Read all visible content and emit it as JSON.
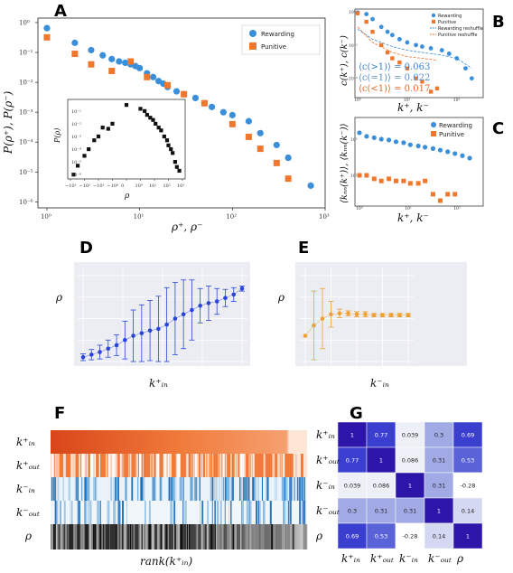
{
  "colors": {
    "rewarding": "#3b8fd8",
    "punitive": "#f0772e",
    "black": "#111111",
    "blue_d": "#2a45d6",
    "orange_e": "#f0a030"
  },
  "panels": {
    "a": "A",
    "b": "B",
    "c": "C",
    "d": "D",
    "e": "E",
    "f": "F",
    "g": "G"
  },
  "legend": {
    "rewarding": "Rewarding",
    "punitive": "Punitive",
    "rewarding_reshuffle": "Rewarding reshuffle",
    "punitive_reshuffle": "Punitive reshuffle"
  },
  "labels": {
    "a_x": "ρ⁺, ρ⁻",
    "a_y": "P(ρ⁺), P(ρ⁻)",
    "a_inset_x": "ρ",
    "a_inset_y": "P(ρ)",
    "b_x": "k⁺, k⁻",
    "b_y": "c(k⁺), c(k⁻)",
    "c_x": "k⁺, k⁻",
    "c_y": "⟨kₙₙ(k⁺)⟩, ⟨kₙₙ(k⁻)⟩",
    "d_x": "k⁺ᵢₙ",
    "d_y": "ρ",
    "e_x": "k⁻ᵢₙ",
    "e_y": "ρ",
    "f_x": "rank(k⁺ᵢₙ)"
  },
  "b_annotations": [
    "⟨c(>1)⟩ = 0.063",
    "⟨c(=1)⟩ = 0.022",
    "⟨c(<1)⟩ = 0.017"
  ],
  "a_xticks": [
    "10⁰",
    "10¹",
    "10²",
    "10³"
  ],
  "a_yticks": [
    "10⁰",
    "10⁻¹",
    "10⁻²",
    "10⁻³",
    "10⁻⁴",
    "10⁻⁵",
    "10⁻⁶"
  ],
  "a_inset_xticks": [
    "−10³",
    "−10²",
    "−10¹",
    "−10⁰",
    "0",
    "10⁰",
    "10¹",
    "10²",
    "10³"
  ],
  "a_inset_yticks": [
    "10⁻¹",
    "10⁻²",
    "10⁻³",
    "10⁻⁴",
    "10⁻⁵",
    "10⁻⁶"
  ],
  "b_xticks": [
    "10⁰",
    "10¹",
    "10²"
  ],
  "b_yticks": [
    "10⁰",
    "10⁻¹",
    "10⁻²"
  ],
  "c_xticks": [
    "10⁰",
    "10¹",
    "10²"
  ],
  "c_yticks": [
    "10²",
    "10¹"
  ],
  "f_rows": [
    "k⁺ᵢₙ",
    "k⁺ₒᵤₜ",
    "k⁻ᵢₙ",
    "k⁻ₒᵤₜ",
    "ρ"
  ],
  "chart_data": [
    {
      "id": "A",
      "type": "scatter",
      "xscale": "log",
      "yscale": "log",
      "xlim": [
        0.8,
        1000
      ],
      "ylim": [
        1e-06,
        1
      ],
      "series": [
        {
          "name": "Rewarding",
          "x": [
            1,
            2,
            3,
            4,
            5,
            6,
            7,
            8,
            9,
            10,
            12,
            14,
            16,
            18,
            20,
            25,
            30,
            40,
            50,
            60,
            80,
            100,
            150,
            200,
            300,
            400,
            700
          ],
          "y": [
            0.65,
            0.21,
            0.12,
            0.08,
            0.06,
            0.05,
            0.045,
            0.04,
            0.035,
            0.03,
            0.02,
            0.015,
            0.011,
            0.009,
            0.007,
            0.005,
            0.004,
            0.003,
            0.002,
            0.0015,
            0.001,
            0.0008,
            0.0005,
            0.0002,
            8e-05,
            3e-05,
            3.5e-06
          ]
        },
        {
          "name": "Punitive",
          "x": [
            1,
            2,
            3,
            5,
            8,
            12,
            20,
            30,
            50,
            100,
            150,
            200,
            300,
            400
          ],
          "y": [
            0.32,
            0.09,
            0.04,
            0.024,
            0.05,
            0.015,
            0.008,
            0.004,
            0.002,
            0.0004,
            0.00015,
            6e-05,
            2e-05,
            6e-06
          ]
        }
      ]
    },
    {
      "id": "A_inset",
      "type": "scatter",
      "series": [
        {
          "name": "",
          "x": [
            -600,
            -300,
            -100,
            -50,
            -20,
            -10,
            -5,
            -2,
            -1,
            0,
            1,
            2,
            3,
            5,
            8,
            12,
            20,
            30,
            50,
            80,
            100,
            150,
            200,
            300,
            400,
            600
          ],
          "y": [
            1e-06,
            5e-06,
            3e-05,
            0.0001,
            0.0005,
            0.001,
            0.005,
            0.004,
            0.01,
            0.3,
            0.15,
            0.1,
            0.05,
            0.03,
            0.02,
            0.01,
            0.005,
            0.003,
            0.001,
            0.0005,
            0.0002,
            0.0001,
            5e-05,
            1e-05,
            4e-06,
            2e-06
          ]
        }
      ]
    },
    {
      "id": "B",
      "type": "scatter",
      "xscale": "log",
      "yscale": "log",
      "xlim": [
        1,
        300
      ],
      "ylim": [
        0.003,
        1
      ],
      "series": [
        {
          "name": "Rewarding",
          "x": [
            1,
            1.5,
            2,
            3,
            4,
            5,
            7,
            10,
            15,
            20,
            30,
            50,
            70,
            100,
            150,
            200
          ],
          "y": [
            0.95,
            0.85,
            0.6,
            0.35,
            0.25,
            0.2,
            0.15,
            0.12,
            0.1,
            0.09,
            0.08,
            0.07,
            0.055,
            0.04,
            0.02,
            0.01
          ]
        },
        {
          "name": "Punitive",
          "x": [
            1,
            1.5,
            2,
            3,
            4,
            5,
            7,
            10,
            15,
            20,
            30,
            40
          ],
          "y": [
            0.9,
            0.5,
            0.25,
            0.1,
            0.06,
            0.04,
            0.03,
            0.02,
            0.01,
            0.008,
            0.004,
            0.005
          ]
        },
        {
          "name": "Rewarding reshuffle",
          "x": [
            1,
            2,
            5,
            10,
            20,
            50,
            100,
            200
          ],
          "y": [
            0.3,
            0.15,
            0.09,
            0.07,
            0.06,
            0.05,
            0.04,
            0.02
          ]
        },
        {
          "name": "Punitive reshuffle",
          "x": [
            1,
            2,
            5,
            10,
            20,
            40
          ],
          "y": [
            0.35,
            0.12,
            0.06,
            0.045,
            0.04,
            0.035
          ]
        }
      ]
    },
    {
      "id": "C",
      "type": "scatter",
      "xscale": "log",
      "yscale": "log",
      "series": [
        {
          "name": "Rewarding",
          "x": [
            1,
            1.4,
            2,
            2.8,
            4,
            5.6,
            8,
            11,
            16,
            22,
            32,
            45,
            64,
            90,
            128,
            180
          ],
          "y": [
            150,
            120,
            110,
            100,
            95,
            85,
            80,
            70,
            65,
            60,
            55,
            50,
            45,
            40,
            35,
            30
          ]
        },
        {
          "name": "Punitive",
          "x": [
            1,
            1.4,
            2,
            2.8,
            4,
            5.6,
            8,
            11,
            16,
            22,
            32,
            45,
            64,
            90
          ],
          "y": [
            10,
            10,
            8,
            7,
            8,
            7,
            7,
            6,
            6,
            7,
            3,
            2,
            3,
            3
          ]
        }
      ]
    },
    {
      "id": "D",
      "type": "line",
      "series": [
        {
          "name": "",
          "x": [
            1,
            2,
            3,
            4,
            5,
            6,
            7,
            8,
            9,
            10,
            11,
            12,
            13,
            14,
            15,
            16,
            17,
            18,
            19,
            20
          ],
          "y": [
            0.05,
            0.08,
            0.11,
            0.15,
            0.19,
            0.25,
            0.3,
            0.33,
            0.36,
            0.38,
            0.43,
            0.5,
            0.55,
            0.6,
            0.65,
            0.68,
            0.7,
            0.74,
            0.78,
            0.85
          ],
          "err": [
            0.04,
            0.06,
            0.08,
            0.1,
            0.12,
            0.22,
            0.3,
            0.33,
            0.35,
            0.38,
            0.43,
            0.42,
            0.4,
            0.35,
            0.2,
            0.2,
            0.15,
            0.1,
            0.08,
            0.03
          ]
        }
      ]
    },
    {
      "id": "E",
      "type": "line",
      "series": [
        {
          "name": "",
          "x": [
            1,
            2,
            3,
            4,
            5,
            6,
            7,
            8,
            9,
            10,
            11,
            12,
            13
          ],
          "y": [
            0.3,
            0.42,
            0.5,
            0.55,
            0.56,
            0.56,
            0.55,
            0.55,
            0.54,
            0.54,
            0.54,
            0.54,
            0.54
          ],
          "err": [
            0.0,
            0.4,
            0.35,
            0.15,
            0.05,
            0.03,
            0.03,
            0.03,
            0.02,
            0.02,
            0.02,
            0.02,
            0.02
          ]
        }
      ]
    },
    {
      "id": "G",
      "type": "heatmap",
      "rows": [
        "k⁺ᵢₙ",
        "k⁺ₒᵤₜ",
        "k⁻ᵢₙ",
        "k⁻ₒᵤₜ",
        "ρ"
      ],
      "cols": [
        "k⁺ᵢₙ",
        "k⁺ₒᵤₜ",
        "k⁻ᵢₙ",
        "k⁻ₒᵤₜ",
        "ρ"
      ],
      "values": [
        [
          1,
          0.77,
          0.039,
          0.3,
          0.69
        ],
        [
          0.77,
          1,
          0.086,
          0.31,
          0.53
        ],
        [
          0.039,
          0.086,
          1,
          0.31,
          -0.28
        ],
        [
          0.3,
          0.31,
          0.31,
          1,
          0.14
        ],
        [
          0.69,
          0.53,
          -0.28,
          0.14,
          1
        ]
      ],
      "labels": [
        [
          "1",
          "0.77",
          "0.039",
          "0.3",
          "0.69"
        ],
        [
          "0.77",
          "1",
          "0.086",
          "0.31",
          "0.53"
        ],
        [
          "0.039",
          "0.086",
          "1",
          "0.31",
          "-0.28"
        ],
        [
          "0.3",
          "0.31",
          "0.31",
          "1",
          "0.14"
        ],
        [
          "0.69",
          "0.53",
          "-0.28",
          "0.14",
          "1"
        ]
      ]
    }
  ]
}
